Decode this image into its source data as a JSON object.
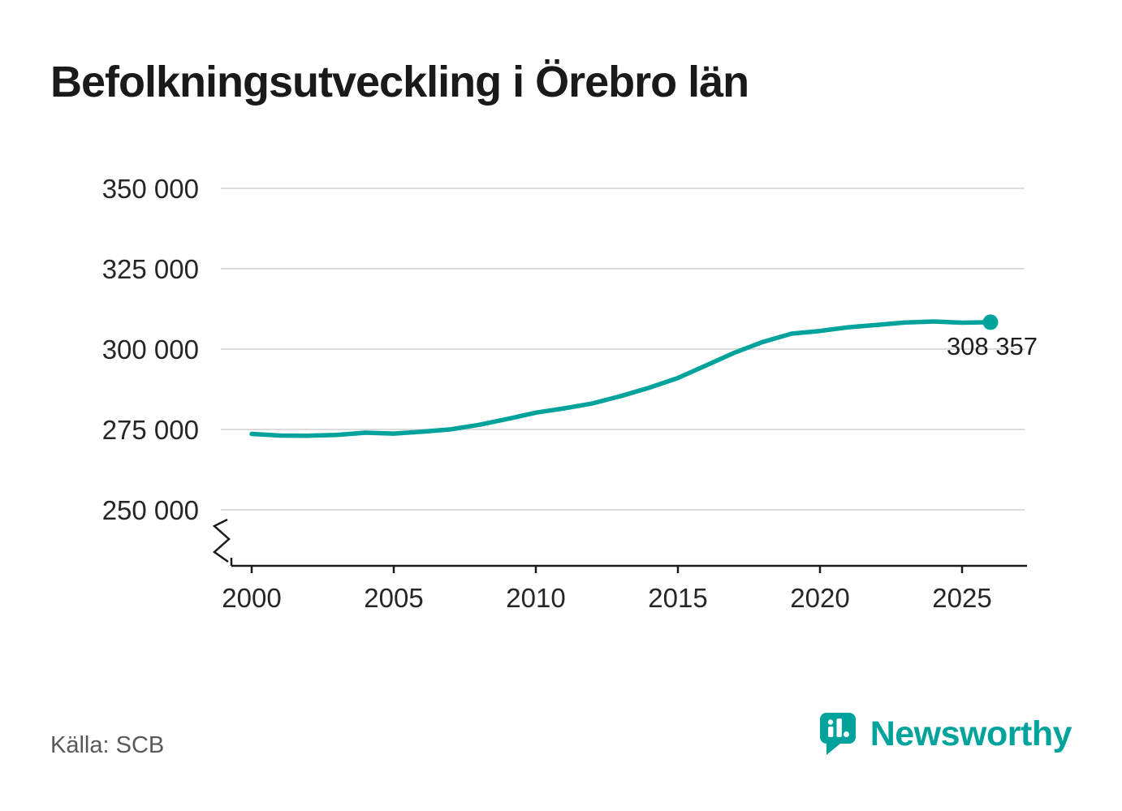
{
  "page": {
    "title": "Befolkningsutveckling i Örebro län",
    "source": "Källa: SCB"
  },
  "brand": {
    "name": "Newsworthy",
    "color": "#00a39b",
    "icon": "newsworthy-pin-barchart-icon"
  },
  "chart_data": {
    "type": "line",
    "title": "Befolkningsutveckling i Örebro län",
    "series_name": "Befolkning",
    "x": [
      2000,
      2001,
      2002,
      2003,
      2004,
      2005,
      2006,
      2007,
      2008,
      2009,
      2010,
      2011,
      2012,
      2013,
      2014,
      2015,
      2016,
      2017,
      2018,
      2019,
      2020,
      2021,
      2022,
      2023,
      2024,
      2025,
      2026
    ],
    "values": [
      273615,
      273113,
      273057,
      273286,
      274000,
      273700,
      274300,
      275030,
      276434,
      278258,
      280230,
      281572,
      283113,
      285395,
      288005,
      291012,
      294941,
      298907,
      302252,
      304805,
      305643,
      306792,
      307521,
      308290,
      308596,
      308200,
      308357
    ],
    "ylim": [
      250000,
      350000
    ],
    "y_axis_break": true,
    "ytick_values": [
      250000,
      275000,
      300000,
      325000,
      350000
    ],
    "ytick_labels": [
      "250 000",
      "275 000",
      "300 000",
      "325 000",
      "350 000"
    ],
    "xtick_values": [
      2000,
      2005,
      2010,
      2015,
      2020,
      2025
    ],
    "xtick_labels": [
      "2000",
      "2005",
      "2010",
      "2015",
      "2020",
      "2025"
    ],
    "annotation": {
      "label": "308 357",
      "x": 2026,
      "value": 308357
    },
    "line_color": "#00a39b",
    "grid": true,
    "grid_color": "#dcdcdc",
    "axis_color": "#1a1a1a",
    "tick_label_color": "#262626",
    "legend": "none"
  }
}
